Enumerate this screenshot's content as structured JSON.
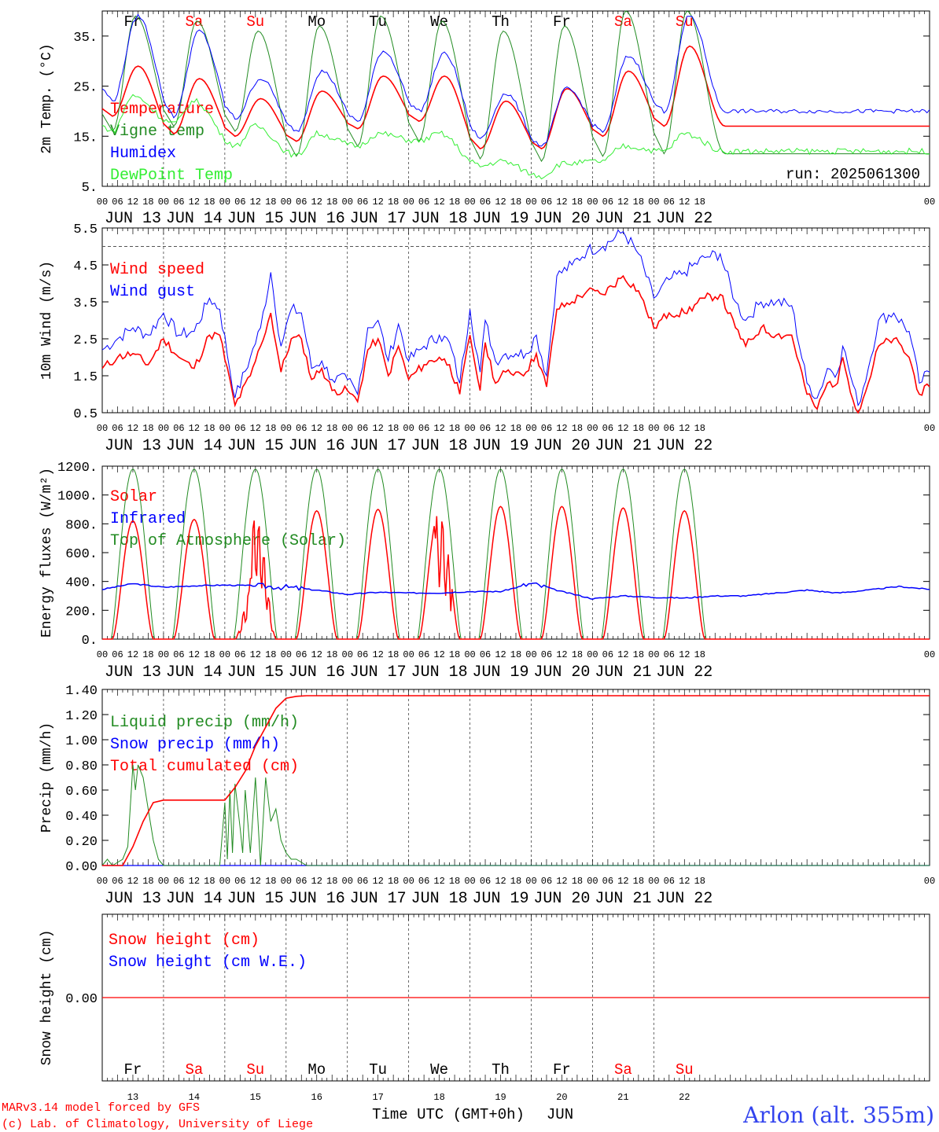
{
  "days": [
    {
      "abbr": "Fr",
      "date_label": "JUN 13",
      "num": "13",
      "weekend": false
    },
    {
      "abbr": "Sa",
      "date_label": "JUN 14",
      "num": "14",
      "weekend": true
    },
    {
      "abbr": "Su",
      "date_label": "JUN 15",
      "num": "15",
      "weekend": true
    },
    {
      "abbr": "Mo",
      "date_label": "JUN 16",
      "num": "16",
      "weekend": false
    },
    {
      "abbr": "Tu",
      "date_label": "JUN 17",
      "num": "17",
      "weekend": false
    },
    {
      "abbr": "We",
      "date_label": "JUN 18",
      "num": "18",
      "weekend": false
    },
    {
      "abbr": "Th",
      "date_label": "JUN 19",
      "num": "19",
      "weekend": false
    },
    {
      "abbr": "Fr",
      "date_label": "JUN 20",
      "num": "20",
      "weekend": false
    },
    {
      "abbr": "Sa",
      "date_label": "JUN 21",
      "num": "21",
      "weekend": true
    },
    {
      "abbr": "Su",
      "date_label": "JUN 22",
      "num": "22",
      "weekend": true
    }
  ],
  "hour_labels": [
    "00",
    "06",
    "12",
    "18"
  ],
  "final_hour_label": "00",
  "colors": {
    "red": "#ff0000",
    "green": "#228b22",
    "blue": "#0000ff",
    "lightgreen": "#33ee33",
    "weekday": "#000000"
  },
  "footer": {
    "model_line": "MARv3.14 model forced by GFS",
    "lab_line": "(c) Lab. of Climatology, University of Liege",
    "xaxis_title": "Time UTC (GMT+0h)",
    "month": "JUN",
    "station": "Arlon (alt. 355m)"
  },
  "chart_data": [
    {
      "type": "line",
      "ylabel": "2m Temp. (°C)",
      "ylim": [
        5,
        40
      ],
      "yticks": [
        5,
        15,
        25,
        35
      ],
      "ytick_labels": [
        "5.",
        "15.",
        "25.",
        "35."
      ],
      "run_label": "run: 2025061300",
      "series": [
        {
          "name": "Temperature",
          "color": "red",
          "key": "temp"
        },
        {
          "name": "Vigne temp",
          "color": "green",
          "key": "vigne"
        },
        {
          "name": "Humidex",
          "color": "blue",
          "key": "humidex"
        },
        {
          "name": "DewPoint Temp",
          "color": "lightgreen",
          "key": "dew"
        }
      ],
      "daily": {
        "temp": [
          [
            19,
            29
          ],
          [
            15.5,
            26.5
          ],
          [
            15,
            22.5
          ],
          [
            14,
            24
          ],
          [
            16.5,
            27
          ],
          [
            18,
            27
          ],
          [
            12.5,
            22
          ],
          [
            12.5,
            24.5
          ],
          [
            15,
            28
          ],
          [
            17,
            33
          ]
        ],
        "vigne": [
          [
            16,
            39
          ],
          [
            17,
            38
          ],
          [
            16,
            36
          ],
          [
            11,
            37
          ],
          [
            13,
            39
          ],
          [
            14,
            38
          ],
          [
            10.5,
            36
          ],
          [
            10,
            37
          ],
          [
            11,
            40
          ],
          [
            11.5,
            40
          ]
        ],
        "humidex": [
          [
            22,
            39
          ],
          [
            19,
            36
          ],
          [
            18.5,
            26.5
          ],
          [
            16,
            28
          ],
          [
            18,
            32
          ],
          [
            20,
            31.5
          ],
          [
            14.5,
            23.5
          ],
          [
            13,
            24.5
          ],
          [
            16,
            31
          ],
          [
            20,
            39
          ]
        ],
        "dew": [
          [
            16,
            23
          ],
          [
            17.5,
            22
          ],
          [
            13,
            17
          ],
          [
            11,
            15.5
          ],
          [
            13,
            15.5
          ],
          [
            14,
            15.5
          ],
          [
            9,
            10
          ],
          [
            7,
            9.5
          ],
          [
            10,
            13
          ],
          [
            12,
            15.5
          ]
        ]
      }
    },
    {
      "type": "line",
      "ylabel": "10m Wind (m/s)",
      "ylim": [
        0.5,
        5.5
      ],
      "yticks": [
        0.5,
        1.5,
        2.5,
        3.5,
        4.5,
        5.5
      ],
      "ytick_labels": [
        "0.5",
        "1.5",
        "2.5",
        "3.5",
        "4.5",
        "5.5"
      ],
      "ref_line": 5.0,
      "series": [
        {
          "name": "Wind speed",
          "color": "red",
          "key": "speed"
        },
        {
          "name": "Wind gust",
          "color": "blue",
          "key": "gust"
        }
      ],
      "speed_points": [
        [
          0,
          1.7
        ],
        [
          6,
          2.0
        ],
        [
          12,
          2.1
        ],
        [
          18,
          1.8
        ],
        [
          24,
          2.5
        ],
        [
          30,
          2.0
        ],
        [
          36,
          1.7
        ],
        [
          42,
          2.6
        ],
        [
          46,
          2.6
        ],
        [
          52,
          0.7
        ],
        [
          58,
          1.5
        ],
        [
          62,
          2.3
        ],
        [
          66,
          3.2
        ],
        [
          70,
          1.6
        ],
        [
          74,
          2.5
        ],
        [
          78,
          2.5
        ],
        [
          82,
          1.4
        ],
        [
          86,
          1.7
        ],
        [
          90,
          1.1
        ],
        [
          96,
          1.1
        ],
        [
          100,
          0.8
        ],
        [
          104,
          2.2
        ],
        [
          108,
          2.5
        ],
        [
          112,
          1.5
        ],
        [
          116,
          2.3
        ],
        [
          120,
          1.4
        ],
        [
          126,
          1.8
        ],
        [
          132,
          2.0
        ],
        [
          136,
          1.8
        ],
        [
          140,
          1.0
        ],
        [
          144,
          2.6
        ],
        [
          148,
          1.1
        ],
        [
          150,
          2.4
        ],
        [
          154,
          1.3
        ],
        [
          158,
          1.6
        ],
        [
          162,
          1.6
        ],
        [
          166,
          1.6
        ],
        [
          170,
          2.1
        ],
        [
          174,
          1.2
        ],
        [
          178,
          3.3
        ],
        [
          184,
          3.5
        ],
        [
          190,
          3.8
        ],
        [
          196,
          3.7
        ],
        [
          204,
          4.2
        ],
        [
          210,
          3.8
        ],
        [
          216,
          2.8
        ],
        [
          222,
          3.2
        ],
        [
          228,
          3.2
        ],
        [
          236,
          3.6
        ],
        [
          242,
          3.7
        ],
        [
          248,
          2.8
        ],
        [
          252,
          2.3
        ],
        [
          258,
          2.8
        ],
        [
          264,
          2.6
        ],
        [
          270,
          2.6
        ],
        [
          276,
          1.0
        ],
        [
          280,
          0.6
        ],
        [
          284,
          1.3
        ],
        [
          288,
          1.3
        ],
        [
          290,
          2.0
        ],
        [
          292,
          1.4
        ],
        [
          296,
          0.5
        ],
        [
          300,
          1.3
        ],
        [
          304,
          2.3
        ],
        [
          310,
          2.5
        ],
        [
          316,
          2.0
        ],
        [
          320,
          1.0
        ],
        [
          324,
          1.2
        ]
      ],
      "gust_points": [
        [
          0,
          2.2
        ],
        [
          6,
          2.5
        ],
        [
          12,
          2.8
        ],
        [
          18,
          2.6
        ],
        [
          24,
          3.2
        ],
        [
          30,
          2.6
        ],
        [
          36,
          2.7
        ],
        [
          42,
          3.6
        ],
        [
          46,
          3.3
        ],
        [
          52,
          0.9
        ],
        [
          58,
          2.0
        ],
        [
          62,
          2.8
        ],
        [
          66,
          4.3
        ],
        [
          70,
          2.3
        ],
        [
          74,
          3.3
        ],
        [
          78,
          3.2
        ],
        [
          82,
          1.7
        ],
        [
          86,
          1.9
        ],
        [
          90,
          1.4
        ],
        [
          96,
          1.4
        ],
        [
          100,
          1.0
        ],
        [
          104,
          2.8
        ],
        [
          108,
          3.0
        ],
        [
          112,
          1.9
        ],
        [
          116,
          2.9
        ],
        [
          120,
          1.9
        ],
        [
          126,
          2.3
        ],
        [
          132,
          2.6
        ],
        [
          136,
          2.4
        ],
        [
          140,
          1.3
        ],
        [
          144,
          3.3
        ],
        [
          148,
          1.6
        ],
        [
          150,
          3.0
        ],
        [
          154,
          1.9
        ],
        [
          158,
          2.1
        ],
        [
          162,
          2.1
        ],
        [
          166,
          2.1
        ],
        [
          170,
          2.6
        ],
        [
          174,
          1.5
        ],
        [
          178,
          4.2
        ],
        [
          184,
          4.5
        ],
        [
          190,
          4.9
        ],
        [
          196,
          5.0
        ],
        [
          204,
          5.4
        ],
        [
          210,
          4.8
        ],
        [
          216,
          3.6
        ],
        [
          222,
          4.1
        ],
        [
          228,
          4.3
        ],
        [
          236,
          4.7
        ],
        [
          242,
          4.8
        ],
        [
          248,
          3.5
        ],
        [
          252,
          3.0
        ],
        [
          258,
          3.5
        ],
        [
          264,
          3.5
        ],
        [
          270,
          3.4
        ],
        [
          276,
          1.3
        ],
        [
          280,
          0.9
        ],
        [
          284,
          1.7
        ],
        [
          288,
          1.6
        ],
        [
          290,
          2.3
        ],
        [
          292,
          1.8
        ],
        [
          296,
          0.7
        ],
        [
          300,
          1.7
        ],
        [
          304,
          3.0
        ],
        [
          310,
          3.2
        ],
        [
          316,
          2.7
        ],
        [
          320,
          1.3
        ],
        [
          324,
          1.6
        ]
      ]
    },
    {
      "type": "line",
      "ylabel": "Energy fluxes (W/m²)",
      "ylim": [
        0,
        1200
      ],
      "yticks": [
        0,
        200,
        400,
        600,
        800,
        1000,
        1200
      ],
      "ytick_labels": [
        "0.",
        "200.",
        "400.",
        "600.",
        "800.",
        "1000.",
        "1200."
      ],
      "series": [
        {
          "name": "Solar",
          "color": "red",
          "key": "solar"
        },
        {
          "name": "Infrared",
          "color": "blue",
          "key": "ir"
        },
        {
          "name": "Top of Atmosphere (Solar)",
          "color": "green",
          "key": "toa"
        }
      ],
      "toa_peak": 1180,
      "solar_daily_peak": [
        820,
        830,
        880,
        890,
        900,
        890,
        920,
        920,
        910,
        890
      ],
      "ir_points": [
        [
          0,
          345
        ],
        [
          12,
          385
        ],
        [
          24,
          360
        ],
        [
          36,
          370
        ],
        [
          48,
          375
        ],
        [
          60,
          370
        ],
        [
          72,
          360
        ],
        [
          84,
          340
        ],
        [
          96,
          310
        ],
        [
          108,
          325
        ],
        [
          120,
          320
        ],
        [
          132,
          320
        ],
        [
          144,
          330
        ],
        [
          156,
          330
        ],
        [
          168,
          385
        ],
        [
          180,
          330
        ],
        [
          192,
          280
        ],
        [
          204,
          300
        ],
        [
          216,
          290
        ],
        [
          228,
          285
        ],
        [
          240,
          300
        ],
        [
          252,
          300
        ],
        [
          264,
          320
        ],
        [
          276,
          340
        ],
        [
          288,
          320
        ],
        [
          300,
          340
        ],
        [
          312,
          365
        ],
        [
          324,
          345
        ]
      ]
    },
    {
      "type": "line",
      "ylabel": "Precip (mm/h)",
      "ylim": [
        0,
        1.4
      ],
      "yticks": [
        0,
        0.2,
        0.4,
        0.6,
        0.8,
        1.0,
        1.2,
        1.4
      ],
      "ytick_labels": [
        "0.00",
        "0.20",
        "0.40",
        "0.60",
        "0.80",
        "1.00",
        "1.20",
        "1.40"
      ],
      "series": [
        {
          "name": "Liquid precip (mm/h)",
          "color": "green",
          "key": "liquid"
        },
        {
          "name": "Snow precip (mm/h)",
          "color": "blue",
          "key": "snow"
        },
        {
          "name": "Total cumulated (cm)",
          "color": "red",
          "key": "total"
        }
      ],
      "liquid_points": [
        [
          0,
          0
        ],
        [
          2,
          0.05
        ],
        [
          4,
          0
        ],
        [
          8,
          0.05
        ],
        [
          10,
          0.15
        ],
        [
          12,
          0.8
        ],
        [
          13,
          0.6
        ],
        [
          14,
          0.8
        ],
        [
          16,
          0.7
        ],
        [
          18,
          0.45
        ],
        [
          20,
          0.2
        ],
        [
          22,
          0.05
        ],
        [
          24,
          0
        ],
        [
          46,
          0
        ],
        [
          48,
          0.5
        ],
        [
          49,
          0.05
        ],
        [
          50,
          0.6
        ],
        [
          51,
          0.1
        ],
        [
          52,
          0.65
        ],
        [
          54,
          0.3
        ],
        [
          55,
          0.1
        ],
        [
          56,
          0.6
        ],
        [
          58,
          0.1
        ],
        [
          60,
          0.7
        ],
        [
          62,
          0
        ],
        [
          64,
          0.7
        ],
        [
          66,
          0.35
        ],
        [
          68,
          0.45
        ],
        [
          70,
          0.2
        ],
        [
          72,
          0.1
        ],
        [
          74,
          0.05
        ],
        [
          76,
          0.05
        ],
        [
          80,
          0
        ],
        [
          324,
          0
        ]
      ],
      "total_points": [
        [
          0,
          0
        ],
        [
          8,
          0
        ],
        [
          12,
          0.15
        ],
        [
          16,
          0.35
        ],
        [
          20,
          0.5
        ],
        [
          24,
          0.52
        ],
        [
          48,
          0.52
        ],
        [
          52,
          0.62
        ],
        [
          56,
          0.75
        ],
        [
          60,
          0.95
        ],
        [
          64,
          1.1
        ],
        [
          68,
          1.25
        ],
        [
          72,
          1.33
        ],
        [
          76,
          1.345
        ],
        [
          80,
          1.35
        ],
        [
          324,
          1.35
        ]
      ]
    },
    {
      "type": "line",
      "ylabel": "Snow height (cm)",
      "ylim": [
        -0.5,
        0.5
      ],
      "yticks": [
        0
      ],
      "ytick_labels": [
        "0.00"
      ],
      "series": [
        {
          "name": "Snow height (cm)",
          "color": "red",
          "key": "sh"
        },
        {
          "name": "Snow height (cm W.E.)",
          "color": "blue",
          "key": "swe"
        }
      ],
      "value": 0.0
    }
  ]
}
